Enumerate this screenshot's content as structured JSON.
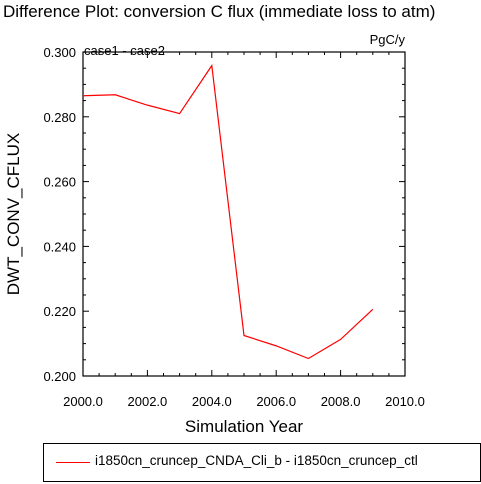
{
  "chart_data": {
    "type": "line",
    "title": "Difference Plot: conversion C flux (immediate loss to atm)",
    "subtitle_left": "case1 - case2",
    "subtitle_right": "PgC/y",
    "xlabel": "Simulation Year",
    "ylabel": "DWT_CONV_CFLUX",
    "xlim": [
      2000,
      2010
    ],
    "ylim": [
      0.2,
      0.3
    ],
    "x_ticks": [
      2000,
      2002,
      2004,
      2006,
      2008,
      2010
    ],
    "x_tick_labels": [
      "2000.0",
      "2002.0",
      "2004.0",
      "2006.0",
      "2008.0",
      "2010.0"
    ],
    "y_ticks": [
      0.2,
      0.22,
      0.24,
      0.26,
      0.28,
      0.3
    ],
    "y_tick_labels": [
      "0.200",
      "0.220",
      "0.240",
      "0.260",
      "0.280",
      "0.300"
    ],
    "grid": false,
    "legend_position": "bottom",
    "series": [
      {
        "name": "i1850cn_cruncep_CNDA_Cli_b - i1850cn_cruncep_ctl",
        "color": "#ff0000",
        "x": [
          2000,
          2001,
          2002,
          2003,
          2004,
          2005,
          2006,
          2007,
          2008,
          2009
        ],
        "values": [
          0.2865,
          0.2868,
          0.2836,
          0.281,
          0.2958,
          0.2125,
          0.2093,
          0.2054,
          0.2113,
          0.2206
        ]
      }
    ]
  }
}
